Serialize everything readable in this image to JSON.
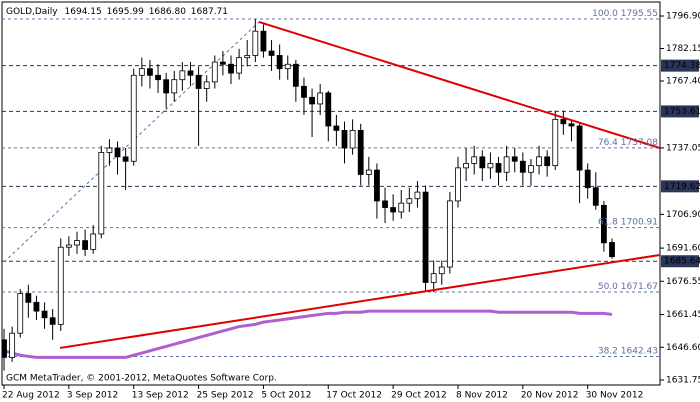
{
  "chart_data": {
    "type": "candlestick",
    "title": "GOLD,Daily",
    "header_labels": [
      "1694.15",
      "1695.99",
      "1686.80",
      "1687.71"
    ],
    "watermark": "GCM MetaTrader, © 2001-2012, MetaQuotes Software Corp.",
    "categories": [
      "22 Aug 2012",
      null,
      null,
      null,
      null,
      null,
      null,
      null,
      "3 Sep 2012",
      null,
      null,
      null,
      null,
      null,
      null,
      null,
      "13 Sep 2012",
      null,
      null,
      null,
      null,
      null,
      null,
      null,
      "25 Sep 2012",
      null,
      null,
      null,
      null,
      null,
      null,
      null,
      "5 Oct 2012",
      null,
      null,
      null,
      null,
      null,
      null,
      null,
      "17 Oct 2012",
      null,
      null,
      null,
      null,
      null,
      null,
      null,
      "29 Oct 2012",
      null,
      null,
      null,
      null,
      null,
      null,
      null,
      "8 Nov 2012",
      null,
      null,
      null,
      null,
      null,
      null,
      null,
      "20 Nov 2012",
      null,
      null,
      null,
      null,
      null,
      null,
      null,
      "30 Nov 2012",
      null,
      null,
      null
    ],
    "open": [
      1650,
      1642,
      1653,
      1671,
      1667,
      1663,
      1660,
      1657,
      1692,
      1693,
      1695,
      1691,
      1698,
      1735,
      1737,
      1733,
      1731,
      1770,
      1773,
      1770,
      1768,
      1762,
      1768,
      1772,
      1770,
      1764,
      1767,
      1776,
      1775,
      1771,
      1778,
      1779,
      1790,
      1781,
      1779,
      1773,
      1775,
      1765,
      1760,
      1757,
      1762,
      1747,
      1745,
      1737,
      1745,
      1725,
      1727,
      1713,
      1710,
      1708,
      1712,
      1714,
      1717,
      1676,
      1680,
      1683,
      1713,
      1728,
      1730,
      1733,
      1728,
      1730,
      1726,
      1733,
      1731,
      1726,
      1729,
      1733,
      1729,
      1750,
      1748,
      1747,
      1727,
      1719,
      1711,
      1694.15
    ],
    "high": [
      1655,
      1656,
      1673,
      1675,
      1670,
      1667,
      1664,
      1696,
      1697,
      1699,
      1700,
      1702,
      1738,
      1741,
      1740,
      1737,
      1773,
      1778,
      1777,
      1775,
      1771,
      1772,
      1776,
      1776,
      1774,
      1770,
      1779,
      1781,
      1779,
      1782,
      1786,
      1795.55,
      1793,
      1786,
      1784,
      1779,
      1777,
      1769,
      1764,
      1766,
      1763,
      1752,
      1749,
      1750,
      1748,
      1733,
      1730,
      1719,
      1716,
      1718,
      1719,
      1722,
      1720,
      1686,
      1686,
      1717,
      1733,
      1737,
      1738,
      1736,
      1735,
      1733,
      1738,
      1737,
      1735,
      1732,
      1738,
      1736,
      1754,
      1754,
      1750,
      1748,
      1730,
      1726,
      1713,
      1695.99
    ],
    "low": [
      1636,
      1640,
      1651,
      1660,
      1659,
      1655,
      1650,
      1654,
      1688,
      1689,
      1688,
      1689,
      1696,
      1729,
      1725,
      1718,
      1729,
      1765,
      1764,
      1762,
      1755,
      1758,
      1763,
      1765,
      1738,
      1758,
      1764,
      1770,
      1766,
      1768,
      1774,
      1776,
      1778,
      1772,
      1768,
      1768,
      1758,
      1752,
      1742,
      1752,
      1740,
      1738,
      1730,
      1734,
      1720,
      1720,
      1705,
      1703,
      1704,
      1705,
      1708,
      1710,
      1672,
      1671.67,
      1675,
      1680,
      1710,
      1722,
      1725,
      1722,
      1723,
      1720,
      1722,
      1726,
      1720,
      1720,
      1725,
      1724,
      1727,
      1743,
      1740,
      1712,
      1714,
      1709,
      1690,
      1686.8
    ],
    "close": [
      1642,
      1653,
      1671,
      1667,
      1663,
      1660,
      1657,
      1692,
      1693,
      1695,
      1691,
      1698,
      1735,
      1737,
      1733,
      1731,
      1770,
      1773,
      1770,
      1768,
      1762,
      1768,
      1772,
      1770,
      1764,
      1767,
      1776,
      1775,
      1771,
      1778,
      1779,
      1790,
      1781,
      1779,
      1773,
      1775,
      1765,
      1760,
      1757,
      1762,
      1747,
      1745,
      1737,
      1745,
      1725,
      1727,
      1713,
      1710,
      1708,
      1712,
      1714,
      1717,
      1676,
      1680,
      1683,
      1713,
      1728,
      1730,
      1733,
      1728,
      1730,
      1726,
      1733,
      1731,
      1726,
      1729,
      1733,
      1729,
      1750,
      1748,
      1747,
      1727,
      1719,
      1711,
      1694,
      1687.71
    ],
    "up_color": "#ffffff",
    "down_color": "#000000",
    "moving_average": {
      "color": "#b05fd0",
      "values": [
        1645,
        1644,
        1643,
        1642.5,
        1642,
        1642,
        1642,
        1642,
        1642,
        1642,
        1642,
        1642,
        1642,
        1642,
        1642,
        1642,
        1643,
        1644,
        1645,
        1646,
        1647,
        1648,
        1649,
        1650,
        1651,
        1652,
        1653,
        1654,
        1655,
        1656,
        1656.5,
        1657,
        1658,
        1658.5,
        1659,
        1659.5,
        1660,
        1660.5,
        1661,
        1661.5,
        1662,
        1662,
        1662.5,
        1662.5,
        1662.5,
        1663,
        1663,
        1663,
        1663,
        1663,
        1663,
        1663,
        1663,
        1663,
        1663,
        1663,
        1663,
        1663,
        1663,
        1663,
        1663,
        1662.5,
        1662.5,
        1662.5,
        1662.5,
        1662.5,
        1662.5,
        1662.5,
        1662.5,
        1662.5,
        1662.5,
        1662,
        1662,
        1662,
        1662,
        1661.5
      ]
    },
    "trendlines": [
      {
        "color": "#e00000",
        "from": [
          6.9,
          1646.3
        ],
        "to": [
          80.92,
          1688.5
        ]
      },
      {
        "color": "#e00000",
        "from": [
          31.45,
          1794.2
        ],
        "to": [
          80.92,
          1737
        ]
      }
    ],
    "fib_trend": {
      "color": "#6070a0",
      "from": [
        0,
        1685.3
      ],
      "to": [
        31.45,
        1794.2
      ]
    },
    "fib_levels": [
      {
        "label": "100.0",
        "value": 1795.55
      },
      {
        "label": "76.4",
        "value": 1737.08
      },
      {
        "label": "61.8",
        "value": 1700.91
      },
      {
        "label": "50.0",
        "value": 1671.67
      },
      {
        "label": "38.2",
        "value": 1642.43
      }
    ],
    "fib_color": "#6070a0",
    "levels": [
      1774.38,
      1753.61,
      1719.62,
      1685.64
    ],
    "level_color": "#2a3558",
    "xlim": [
      -0.25,
      80.92
    ],
    "ylim": [
      1629.49,
      1803.25
    ],
    "yticks": [
      {
        "value": 1796.9,
        "label": "1796.90"
      },
      1782.15,
      {
        "value": 1767.4,
        "label": "1767.40"
      },
      1737.05,
      {
        "value": 1706.9,
        "label": "1706.90"
      },
      {
        "value": 1691.6,
        "label": "1691.60"
      },
      1676.55,
      1661.45,
      {
        "value": 1646.6,
        "label": "1646.60"
      },
      1631.75
    ]
  }
}
